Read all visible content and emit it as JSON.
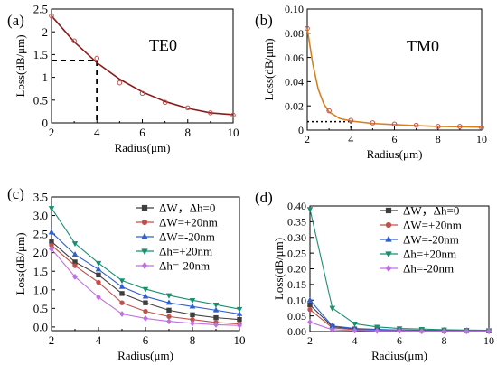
{
  "chart_data": [
    {
      "panel": "(a)",
      "type": "scatter",
      "annotation": "TE0",
      "xlabel": "Radius(μm)",
      "ylabel": "Loss(dB/μm)",
      "xlim": [
        2,
        10
      ],
      "ylim": [
        0,
        2.5
      ],
      "xticks": [
        2,
        4,
        6,
        8,
        10
      ],
      "yticks": [
        0,
        0.5,
        1,
        1.5,
        2,
        2.5
      ],
      "ytick_labels": [
        "0",
        "0.5",
        "1",
        "1.5",
        "2",
        "2.5"
      ],
      "grid": false,
      "series": [
        {
          "kind": "markers",
          "color": "#c0504d",
          "x": [
            2,
            3,
            4,
            5,
            6,
            7,
            8,
            9,
            10
          ],
          "y": [
            2.35,
            1.8,
            1.42,
            0.88,
            0.65,
            0.45,
            0.33,
            0.22,
            0.17
          ]
        },
        {
          "kind": "fit-line",
          "color": "#8b1a1a",
          "x": [
            2,
            3,
            4,
            5,
            6,
            7,
            8,
            9,
            10
          ],
          "y": [
            2.35,
            1.78,
            1.32,
            0.96,
            0.68,
            0.47,
            0.32,
            0.22,
            0.18
          ]
        }
      ],
      "reference": {
        "x": 4,
        "y": 1.37,
        "style": "dashed"
      }
    },
    {
      "panel": "(b)",
      "type": "scatter",
      "annotation": "TM0",
      "xlabel": "Radius(μm)",
      "ylabel": "Loss(dB/μm)",
      "xlim": [
        2,
        10
      ],
      "ylim": [
        0,
        0.1
      ],
      "xticks": [
        2,
        4,
        6,
        8,
        10
      ],
      "yticks": [
        0,
        0.02,
        0.04,
        0.06,
        0.08,
        0.1
      ],
      "ytick_labels": [
        "0",
        "0.02",
        "0.04",
        "0.06",
        "0.08",
        "0.10"
      ],
      "grid": false,
      "series": [
        {
          "kind": "markers",
          "color": "#c0504d",
          "x": [
            2,
            3,
            4,
            5,
            6,
            7,
            8,
            9,
            10
          ],
          "y": [
            0.084,
            0.016,
            0.008,
            0.006,
            0.005,
            0.004,
            0.003,
            0.003,
            0.002
          ]
        },
        {
          "kind": "fit-line",
          "color": "#d4821f",
          "x": [
            2,
            2.25,
            2.5,
            2.75,
            3,
            3.5,
            4,
            5,
            6,
            7,
            8,
            9,
            10
          ],
          "y": [
            0.084,
            0.055,
            0.034,
            0.022,
            0.015,
            0.0095,
            0.0075,
            0.0055,
            0.0045,
            0.0037,
            0.003,
            0.0027,
            0.0024
          ]
        }
      ],
      "reference": {
        "x": 4,
        "y": 0.007,
        "style": "dotted"
      }
    },
    {
      "panel": "(c)",
      "type": "line",
      "xlabel": "Radius(μm)",
      "ylabel": "Loss(dB/μm)",
      "xlim": [
        2,
        10
      ],
      "ylim": [
        -0.1,
        3.5
      ],
      "xticks": [
        2,
        4,
        6,
        8,
        10
      ],
      "yticks": [
        0,
        0.5,
        1,
        1.5,
        2,
        2.5,
        3,
        3.5
      ],
      "ytick_labels": [
        "0.0",
        "0.5",
        "1.0",
        "1.5",
        "2.0",
        "2.5",
        "3.0",
        "3.5"
      ],
      "legend_position": "top-right",
      "grid": false,
      "x": [
        2,
        3,
        4,
        5,
        6,
        7,
        8,
        9,
        10
      ],
      "series": [
        {
          "name": "ΔW，Δh=0",
          "color": "#3f3f3f",
          "marker": "square",
          "values": [
            2.3,
            1.75,
            1.4,
            0.9,
            0.65,
            0.45,
            0.33,
            0.25,
            0.2
          ]
        },
        {
          "name": "ΔW=+20nm",
          "color": "#c0504d",
          "marker": "circle",
          "values": [
            2.2,
            1.65,
            1.2,
            0.65,
            0.42,
            0.28,
            0.2,
            0.12,
            0.08
          ]
        },
        {
          "name": "ΔW=-20nm",
          "color": "#2f5fd0",
          "marker": "triangle-up",
          "values": [
            2.55,
            1.95,
            1.55,
            1.08,
            0.82,
            0.65,
            0.55,
            0.45,
            0.35
          ]
        },
        {
          "name": "Δh=+20nm",
          "color": "#1a8f6f",
          "marker": "triangle-down",
          "values": [
            3.2,
            2.25,
            1.72,
            1.25,
            1.02,
            0.85,
            0.72,
            0.6,
            0.48
          ]
        },
        {
          "name": "Δh=-20nm",
          "color": "#c070e0",
          "marker": "diamond",
          "values": [
            2.1,
            1.35,
            0.8,
            0.35,
            0.23,
            0.15,
            0.1,
            0.06,
            0.04
          ]
        }
      ]
    },
    {
      "panel": "(d)",
      "type": "line",
      "xlabel": "Radius(μm)",
      "ylabel": "Loss(dB/μm)",
      "xlim": [
        2,
        10
      ],
      "ylim": [
        0,
        0.4
      ],
      "xticks": [
        2,
        4,
        6,
        8,
        10
      ],
      "yticks": [
        0,
        0.05,
        0.1,
        0.15,
        0.2,
        0.25,
        0.3,
        0.35,
        0.4
      ],
      "ytick_labels": [
        "0.00",
        "0.05",
        "0.10",
        "0.15",
        "0.20",
        "0.25",
        "0.30",
        "0.35",
        "0.40"
      ],
      "legend_position": "top-right",
      "grid": false,
      "x": [
        2,
        3,
        4,
        5,
        6,
        7,
        8,
        9,
        10
      ],
      "series": [
        {
          "name": "ΔW，Δh=0",
          "color": "#3f3f3f",
          "marker": "square",
          "values": [
            0.085,
            0.016,
            0.008,
            0.006,
            0.005,
            0.004,
            0.003,
            0.003,
            0.002
          ]
        },
        {
          "name": "ΔW=+20nm",
          "color": "#c0504d",
          "marker": "circle",
          "values": [
            0.07,
            0.012,
            0.006,
            0.004,
            0.003,
            0.003,
            0.002,
            0.002,
            0.001
          ]
        },
        {
          "name": "ΔW=-20nm",
          "color": "#2f5fd0",
          "marker": "triangle-up",
          "values": [
            0.1,
            0.018,
            0.01,
            0.007,
            0.005,
            0.004,
            0.004,
            0.003,
            0.003
          ]
        },
        {
          "name": "Δh=+20nm",
          "color": "#1a8f6f",
          "marker": "triangle-down",
          "values": [
            0.39,
            0.075,
            0.025,
            0.015,
            0.01,
            0.008,
            0.006,
            0.005,
            0.004
          ]
        },
        {
          "name": "Δh=-20nm",
          "color": "#c070e0",
          "marker": "diamond",
          "values": [
            0.03,
            0.006,
            0.003,
            0.002,
            0.002,
            0.001,
            0.001,
            0.001,
            0.001
          ]
        }
      ]
    }
  ]
}
